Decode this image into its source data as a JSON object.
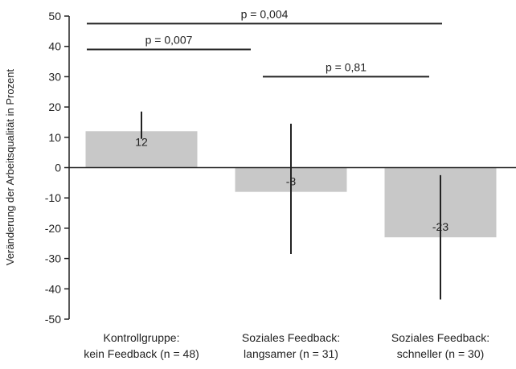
{
  "chart_data": {
    "type": "bar",
    "ylabel": "Veränderung der Arbeitsqualität in Prozent",
    "ylim": [
      -50,
      50
    ],
    "yticks": [
      50,
      40,
      30,
      20,
      10,
      0,
      -10,
      -20,
      -30,
      -40,
      -50
    ],
    "yticks_text": [
      "50",
      "40",
      "30",
      "20",
      "10",
      "0",
      "-10",
      "-20",
      "-30",
      "-40",
      "-50"
    ],
    "categories": [
      [
        "Kontrollgruppe:",
        "kein Feedback (n = 48)"
      ],
      [
        "Soziales Feedback:",
        "langsamer (n = 31)"
      ],
      [
        "Soziales Feedback:",
        "schneller (n = 30)"
      ]
    ],
    "values": [
      12,
      -8,
      -23
    ],
    "value_labels": [
      "12",
      "-8",
      "-23"
    ],
    "error_bars": [
      {
        "low": 9.5,
        "high": 18.5
      },
      {
        "low": -28.5,
        "high": 14.5
      },
      {
        "low": -43.5,
        "high": -2.5
      }
    ],
    "comparisons": [
      {
        "from": 0,
        "to": 2,
        "y": 47.5,
        "label": "p = 0,004"
      },
      {
        "from": 0,
        "to": 1,
        "y": 39,
        "label": "p = 0,007"
      },
      {
        "from": 1,
        "to": 2,
        "y": 30,
        "label": "p = 0,81"
      }
    ],
    "grid": false,
    "colors": {
      "bar": "#c8c8c8",
      "axis": "#222222"
    }
  }
}
